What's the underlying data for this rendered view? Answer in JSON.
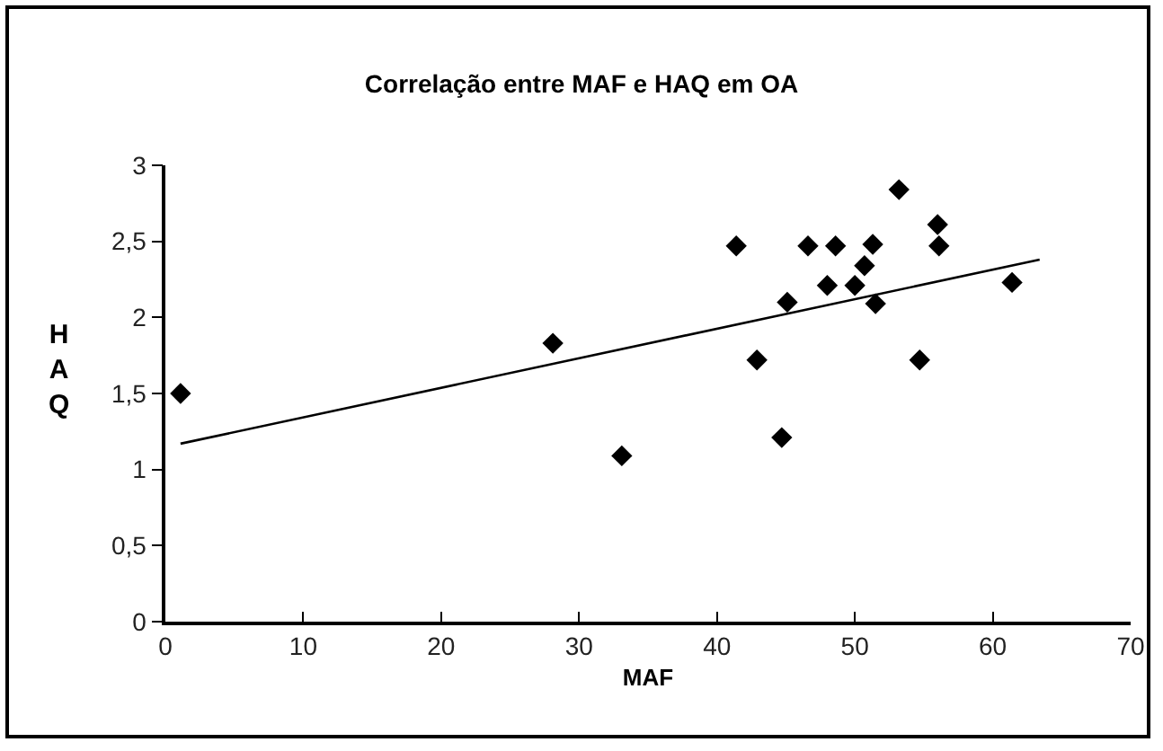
{
  "chart_data": {
    "type": "scatter",
    "title": "Correlação entre MAF e HAQ em OA",
    "xlabel": "MAF",
    "ylabel": "HAQ",
    "xlim": [
      0,
      70
    ],
    "xticks": [
      0,
      10,
      20,
      30,
      40,
      50,
      60,
      70
    ],
    "ylim": [
      0,
      3
    ],
    "yticks": [
      0,
      {
        "value": 0.5,
        "label": "0,5"
      },
      1,
      {
        "value": 1.5,
        "label": "1,5"
      },
      2,
      {
        "value": 2.5,
        "label": "2,5"
      },
      3
    ],
    "grid": false,
    "marker": "diamond",
    "series": [
      {
        "color": "#000000",
        "x": [
          1.1,
          28.1,
          33.1,
          41.4,
          42.9,
          44.7,
          45.1,
          46.6,
          48.0,
          48.6,
          50.0,
          50.7,
          51.3,
          51.5,
          53.2,
          54.7,
          56.0,
          56.1,
          61.4
        ],
        "values": [
          1.5,
          1.83,
          1.09,
          2.47,
          1.72,
          1.21,
          2.1,
          2.47,
          2.21,
          2.47,
          2.21,
          2.34,
          2.48,
          2.09,
          2.84,
          1.72,
          2.61,
          2.47,
          2.23
        ]
      },
      {
        "type": "line",
        "color": "#000000",
        "marker": "none",
        "line_style": "solid",
        "x": [
          1.1,
          63.4
        ],
        "values": [
          1.17,
          2.38
        ]
      }
    ]
  }
}
